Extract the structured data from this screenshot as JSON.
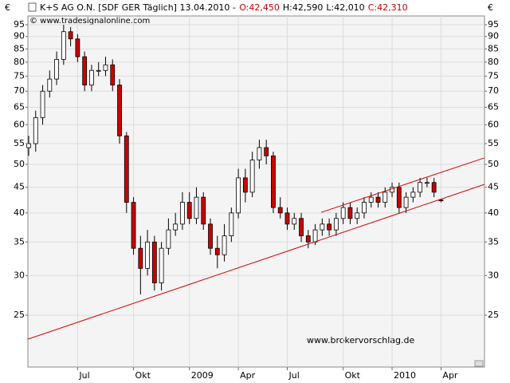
{
  "chart_data": {
    "type": "candlestick",
    "title": "K+S AG O.N. [SDF GER  Täglich] 13.04.2010 -",
    "ohlc_labels": [
      "O:42,450",
      "H:42,590",
      "L:42,010",
      "C:42,310"
    ],
    "ohlc_label_colors": [
      "#cc0000",
      "#000000",
      "#000000",
      "#cc0000"
    ],
    "currency_label": "€",
    "copyright": "© www.tradesignalonline.com",
    "watermark": "www.brokervorschlag.de",
    "watermark_color": "#0000cc",
    "categories": [
      null,
      null,
      null,
      null,
      null,
      null,
      null,
      "Jul",
      null,
      null,
      null,
      null,
      null,
      null,
      null,
      "Okt",
      null,
      null,
      null,
      null,
      null,
      null,
      null,
      "2009",
      null,
      null,
      null,
      null,
      null,
      null,
      "Apr",
      null,
      null,
      null,
      null,
      null,
      null,
      "Jul",
      null,
      null,
      null,
      null,
      null,
      null,
      null,
      "Okt",
      null,
      null,
      null,
      null,
      null,
      null,
      "2010",
      null,
      null,
      null,
      null,
      null,
      null,
      "Apr"
    ],
    "open": [
      54,
      55,
      62,
      70,
      74,
      81,
      92,
      89,
      82,
      72,
      77,
      77,
      79,
      72,
      57,
      42,
      34,
      31,
      35,
      29,
      34,
      37,
      38,
      42,
      39,
      43,
      38,
      34,
      33,
      36,
      40,
      47,
      44,
      51,
      54,
      52,
      41,
      40,
      38,
      39,
      36,
      35,
      37,
      38,
      37,
      39,
      41,
      39,
      40,
      42,
      43,
      42,
      44,
      45,
      41,
      43,
      44,
      46,
      46,
      42.45
    ],
    "high": [
      57,
      64,
      72,
      77,
      84,
      95,
      94,
      91,
      84,
      79,
      80,
      82,
      81,
      74,
      58,
      43,
      36,
      37,
      36,
      35,
      39,
      40,
      44,
      44,
      45,
      44,
      39,
      36,
      38,
      41,
      49,
      49,
      53,
      56,
      56,
      53,
      43,
      41,
      40,
      40,
      37,
      38,
      39,
      39,
      40,
      42,
      42,
      41,
      43,
      44,
      44,
      45,
      46,
      46,
      44,
      45,
      47,
      47,
      47,
      42.59
    ],
    "low": [
      52,
      53,
      60,
      68,
      72,
      79,
      86,
      80,
      70,
      70,
      75,
      75,
      70,
      55,
      40,
      33,
      27.5,
      30,
      28,
      28,
      33,
      36,
      37,
      38,
      38,
      37,
      33,
      31,
      32,
      35,
      39,
      42,
      43,
      49,
      50,
      40,
      39,
      37,
      37,
      35,
      34,
      34.5,
      36,
      36,
      36,
      38,
      38,
      38,
      39,
      41,
      41,
      41,
      43,
      40,
      40,
      42,
      43,
      45,
      43,
      42.01
    ],
    "close": [
      55,
      62,
      70,
      74,
      81,
      92,
      89,
      82,
      72,
      77,
      77,
      79,
      72,
      57,
      42,
      34,
      31,
      35,
      29,
      34,
      37,
      38,
      42,
      39,
      43,
      38,
      34,
      33,
      36,
      40,
      47,
      44,
      51,
      54,
      52,
      41,
      40,
      38,
      39,
      36,
      35,
      37,
      38,
      37,
      39,
      41,
      39,
      40,
      42,
      43,
      42,
      44,
      45,
      41,
      43,
      44,
      46,
      46,
      44,
      42.31
    ],
    "up_color": "#ffffff",
    "down_color": "#cc0000",
    "trendlines": [
      {
        "color": "#dd0000",
        "x": [
          -0.1,
          65.2
        ],
        "y": [
          22.4,
          45.6
        ]
      },
      {
        "color": "#dd0000",
        "x": [
          41.85,
          65.2
        ],
        "y": [
          40.1,
          51.5
        ]
      }
    ],
    "log_y": true,
    "grid": true,
    "ylim": [
      19.7,
      98.9
    ],
    "yticks": [
      25,
      30,
      35,
      40,
      45,
      50,
      55,
      60,
      65,
      70,
      75,
      80,
      85,
      90,
      95
    ]
  }
}
